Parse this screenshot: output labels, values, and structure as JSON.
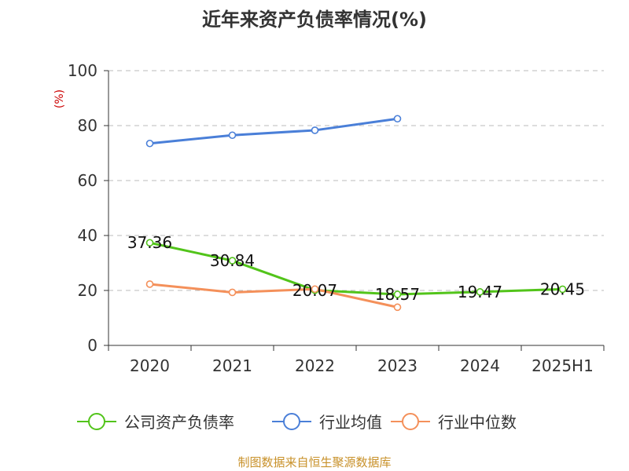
{
  "colors": {
    "asset_liability": "#52c41a",
    "industry_avg": "#4a7fd8",
    "industry_median": "#f4905a",
    "source": "#c8912a",
    "unit": "#cc0000",
    "grid": "#bbbbbb",
    "axis": "#333333"
  },
  "chart_data": {
    "type": "line",
    "title": "近年来资产负债率情况(%)",
    "ylabel": "(%)",
    "xlabel": "",
    "ylim": [
      0,
      100
    ],
    "yticks": [
      "0",
      "20",
      "40",
      "60",
      "80",
      "100"
    ],
    "categories": [
      "2020",
      "2021",
      "2022",
      "2023",
      "2024",
      "2025H1"
    ],
    "grid": "horizontal dashed",
    "legend_position": "bottom",
    "series": [
      {
        "name": "公司资产负债率",
        "color_key": "asset_liability",
        "values": [
          37.36,
          30.84,
          20.07,
          18.57,
          19.47,
          20.45
        ],
        "labels": [
          "37.36",
          "30.84",
          "20.07",
          "18.57",
          "19.47",
          "20.45"
        ]
      },
      {
        "name": "行业均值",
        "color_key": "industry_avg",
        "values": [
          73.5,
          76.5,
          78.3,
          82.5,
          null,
          null
        ]
      },
      {
        "name": "行业中位数",
        "color_key": "industry_median",
        "values": [
          22.3,
          19.3,
          20.5,
          13.9,
          null,
          null
        ]
      }
    ]
  },
  "source": "制图数据来自恒生聚源数据库"
}
